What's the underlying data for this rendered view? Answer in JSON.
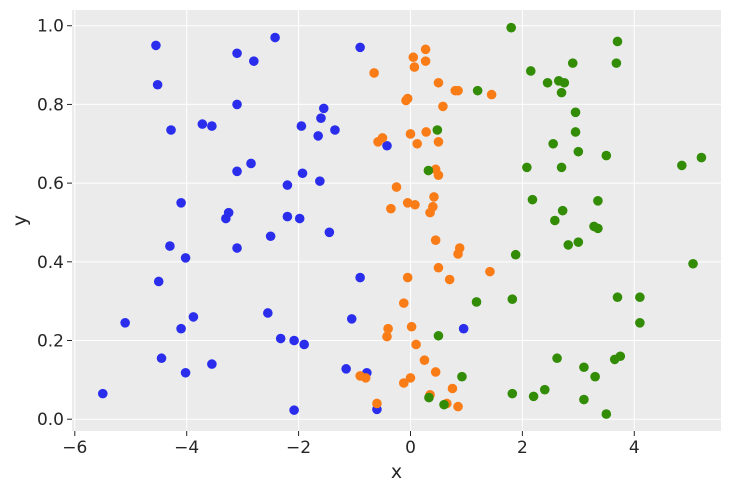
{
  "chart_data": {
    "type": "scatter",
    "xlabel": "x",
    "ylabel": "y",
    "xlim": [
      -6.05,
      5.55
    ],
    "ylim": [
      -0.03,
      1.04
    ],
    "xticks": [
      -6,
      -4,
      -2,
      0,
      2,
      4
    ],
    "xtick_labels": [
      "−6",
      "−4",
      "−2",
      "0",
      "2",
      "4"
    ],
    "yticks": [
      0.0,
      0.2,
      0.4,
      0.6,
      0.8,
      1.0
    ],
    "ytick_labels": [
      "0.0",
      "0.2",
      "0.4",
      "0.6",
      "0.8",
      "1.0"
    ],
    "grid": true,
    "background": "#ebebeb",
    "series": [
      {
        "color": "#2a2eec",
        "points": [
          [
            -4.55,
            0.95
          ],
          [
            -2.42,
            0.97
          ],
          [
            -4.52,
            0.85
          ],
          [
            -3.1,
            0.93
          ],
          [
            -2.8,
            0.91
          ],
          [
            -0.9,
            0.945
          ],
          [
            -3.1,
            0.8
          ],
          [
            -4.28,
            0.735
          ],
          [
            -3.72,
            0.75
          ],
          [
            -3.55,
            0.745
          ],
          [
            -1.55,
            0.79
          ],
          [
            -1.95,
            0.745
          ],
          [
            -1.6,
            0.765
          ],
          [
            -1.65,
            0.72
          ],
          [
            -1.35,
            0.735
          ],
          [
            -0.42,
            0.695
          ],
          [
            -2.85,
            0.65
          ],
          [
            -3.1,
            0.63
          ],
          [
            -1.93,
            0.625
          ],
          [
            -1.62,
            0.605
          ],
          [
            -2.2,
            0.595
          ],
          [
            -4.1,
            0.55
          ],
          [
            -3.25,
            0.525
          ],
          [
            -3.3,
            0.51
          ],
          [
            -2.2,
            0.515
          ],
          [
            -1.98,
            0.51
          ],
          [
            -2.5,
            0.465
          ],
          [
            -1.45,
            0.475
          ],
          [
            -4.3,
            0.44
          ],
          [
            -3.1,
            0.435
          ],
          [
            -4.02,
            0.41
          ],
          [
            -0.9,
            0.36
          ],
          [
            -4.5,
            0.35
          ],
          [
            -2.55,
            0.27
          ],
          [
            -3.88,
            0.26
          ],
          [
            -1.05,
            0.255
          ],
          [
            -5.1,
            0.245
          ],
          [
            -4.1,
            0.23
          ],
          [
            0.95,
            0.23
          ],
          [
            -2.32,
            0.205
          ],
          [
            -2.08,
            0.2
          ],
          [
            -1.9,
            0.19
          ],
          [
            -4.45,
            0.155
          ],
          [
            -3.55,
            0.14
          ],
          [
            -1.15,
            0.128
          ],
          [
            -4.02,
            0.118
          ],
          [
            -0.78,
            0.118
          ],
          [
            -5.5,
            0.065
          ],
          [
            -2.08,
            0.023
          ],
          [
            -0.6,
            0.025
          ]
        ]
      },
      {
        "color": "#fa7c17",
        "points": [
          [
            0.27,
            0.94
          ],
          [
            0.05,
            0.92
          ],
          [
            0.27,
            0.91
          ],
          [
            0.07,
            0.895
          ],
          [
            -0.65,
            0.88
          ],
          [
            0.5,
            0.855
          ],
          [
            0.8,
            0.835
          ],
          [
            0.85,
            0.835
          ],
          [
            1.45,
            0.825
          ],
          [
            -0.05,
            0.815
          ],
          [
            -0.08,
            0.81
          ],
          [
            0.58,
            0.795
          ],
          [
            0.28,
            0.73
          ],
          [
            0.0,
            0.725
          ],
          [
            -0.5,
            0.715
          ],
          [
            -0.58,
            0.705
          ],
          [
            0.12,
            0.7
          ],
          [
            0.5,
            0.705
          ],
          [
            0.45,
            0.635
          ],
          [
            0.5,
            0.62
          ],
          [
            -0.25,
            0.59
          ],
          [
            0.42,
            0.565
          ],
          [
            -0.05,
            0.55
          ],
          [
            0.08,
            0.545
          ],
          [
            0.4,
            0.54
          ],
          [
            -0.35,
            0.535
          ],
          [
            0.35,
            0.525
          ],
          [
            0.45,
            0.455
          ],
          [
            0.88,
            0.435
          ],
          [
            0.85,
            0.42
          ],
          [
            0.5,
            0.385
          ],
          [
            1.42,
            0.375
          ],
          [
            -0.05,
            0.36
          ],
          [
            0.7,
            0.355
          ],
          [
            -0.12,
            0.295
          ],
          [
            0.02,
            0.235
          ],
          [
            -0.4,
            0.23
          ],
          [
            -0.42,
            0.21
          ],
          [
            0.1,
            0.19
          ],
          [
            0.25,
            0.15
          ],
          [
            0.45,
            0.12
          ],
          [
            -0.9,
            0.11
          ],
          [
            -0.8,
            0.105
          ],
          [
            0.0,
            0.105
          ],
          [
            -0.12,
            0.092
          ],
          [
            0.75,
            0.078
          ],
          [
            0.35,
            0.062
          ],
          [
            0.65,
            0.04
          ],
          [
            -0.6,
            0.04
          ],
          [
            0.85,
            0.032
          ]
        ]
      },
      {
        "color": "#328c06",
        "points": [
          [
            1.8,
            0.995
          ],
          [
            3.7,
            0.96
          ],
          [
            3.68,
            0.905
          ],
          [
            2.9,
            0.905
          ],
          [
            2.15,
            0.885
          ],
          [
            2.65,
            0.86
          ],
          [
            2.75,
            0.855
          ],
          [
            2.45,
            0.855
          ],
          [
            1.2,
            0.835
          ],
          [
            2.7,
            0.83
          ],
          [
            2.95,
            0.78
          ],
          [
            0.48,
            0.735
          ],
          [
            2.95,
            0.73
          ],
          [
            2.55,
            0.7
          ],
          [
            3.0,
            0.68
          ],
          [
            3.5,
            0.67
          ],
          [
            5.2,
            0.665
          ],
          [
            4.85,
            0.645
          ],
          [
            2.7,
            0.64
          ],
          [
            2.08,
            0.64
          ],
          [
            0.32,
            0.632
          ],
          [
            2.18,
            0.558
          ],
          [
            3.35,
            0.555
          ],
          [
            2.72,
            0.53
          ],
          [
            2.58,
            0.505
          ],
          [
            3.28,
            0.49
          ],
          [
            3.35,
            0.485
          ],
          [
            3.0,
            0.45
          ],
          [
            2.82,
            0.443
          ],
          [
            1.88,
            0.418
          ],
          [
            5.05,
            0.395
          ],
          [
            3.7,
            0.31
          ],
          [
            4.1,
            0.31
          ],
          [
            1.82,
            0.305
          ],
          [
            1.18,
            0.298
          ],
          [
            4.1,
            0.245
          ],
          [
            0.5,
            0.212
          ],
          [
            3.75,
            0.16
          ],
          [
            2.62,
            0.155
          ],
          [
            3.65,
            0.152
          ],
          [
            3.1,
            0.132
          ],
          [
            0.92,
            0.108
          ],
          [
            3.3,
            0.108
          ],
          [
            2.4,
            0.075
          ],
          [
            1.82,
            0.065
          ],
          [
            2.2,
            0.058
          ],
          [
            0.33,
            0.055
          ],
          [
            3.1,
            0.05
          ],
          [
            0.6,
            0.037
          ],
          [
            3.5,
            0.013
          ]
        ]
      }
    ]
  }
}
